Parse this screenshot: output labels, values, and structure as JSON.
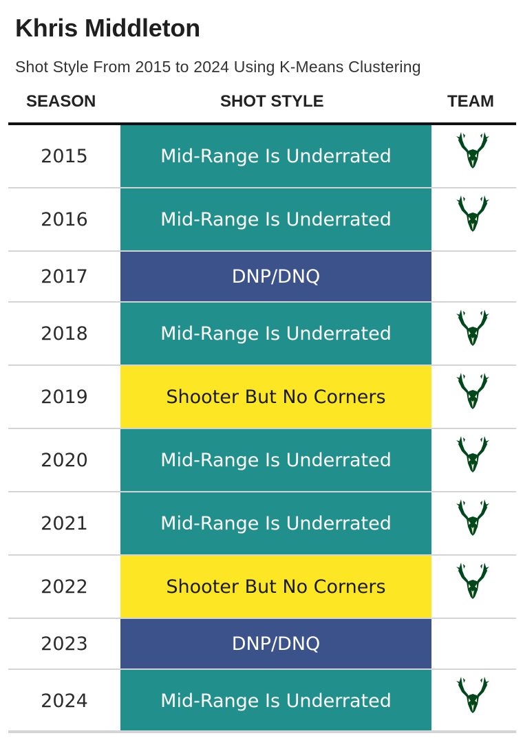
{
  "title": "Khris Middleton",
  "subtitle": "Shot Style From 2015 to 2024 Using K-Means Clustering",
  "columns": {
    "season": "SEASON",
    "style": "SHOT STYLE",
    "team": "TEAM"
  },
  "colors": {
    "Mid-Range Is Underrated": {
      "bg": "#21908d",
      "fg": "#ffffff"
    },
    "DNP/DNQ": {
      "bg": "#3b528b",
      "fg": "#ffffff"
    },
    "Shooter But No Corners": {
      "bg": "#fde725",
      "fg": "#1a1a1a"
    }
  },
  "chart_data": {
    "type": "table",
    "title": "Khris Middleton",
    "subtitle": "Shot Style From 2015 to 2024 Using K-Means Clustering",
    "columns": [
      "SEASON",
      "SHOT STYLE",
      "TEAM"
    ],
    "rows": [
      {
        "season": "2015",
        "style": "Mid-Range Is Underrated",
        "team_logo": "bucks-logo-icon"
      },
      {
        "season": "2016",
        "style": "Mid-Range Is Underrated",
        "team_logo": "bucks-logo-icon"
      },
      {
        "season": "2017",
        "style": "DNP/DNQ",
        "team_logo": null
      },
      {
        "season": "2018",
        "style": "Mid-Range Is Underrated",
        "team_logo": "bucks-logo-icon"
      },
      {
        "season": "2019",
        "style": "Shooter But No Corners",
        "team_logo": "bucks-logo-icon"
      },
      {
        "season": "2020",
        "style": "Mid-Range Is Underrated",
        "team_logo": "bucks-logo-icon"
      },
      {
        "season": "2021",
        "style": "Mid-Range Is Underrated",
        "team_logo": "bucks-logo-icon"
      },
      {
        "season": "2022",
        "style": "Shooter But No Corners",
        "team_logo": "bucks-logo-icon"
      },
      {
        "season": "2023",
        "style": "DNP/DNQ",
        "team_logo": null
      },
      {
        "season": "2024",
        "style": "Mid-Range Is Underrated",
        "team_logo": "bucks-logo-icon"
      }
    ]
  }
}
